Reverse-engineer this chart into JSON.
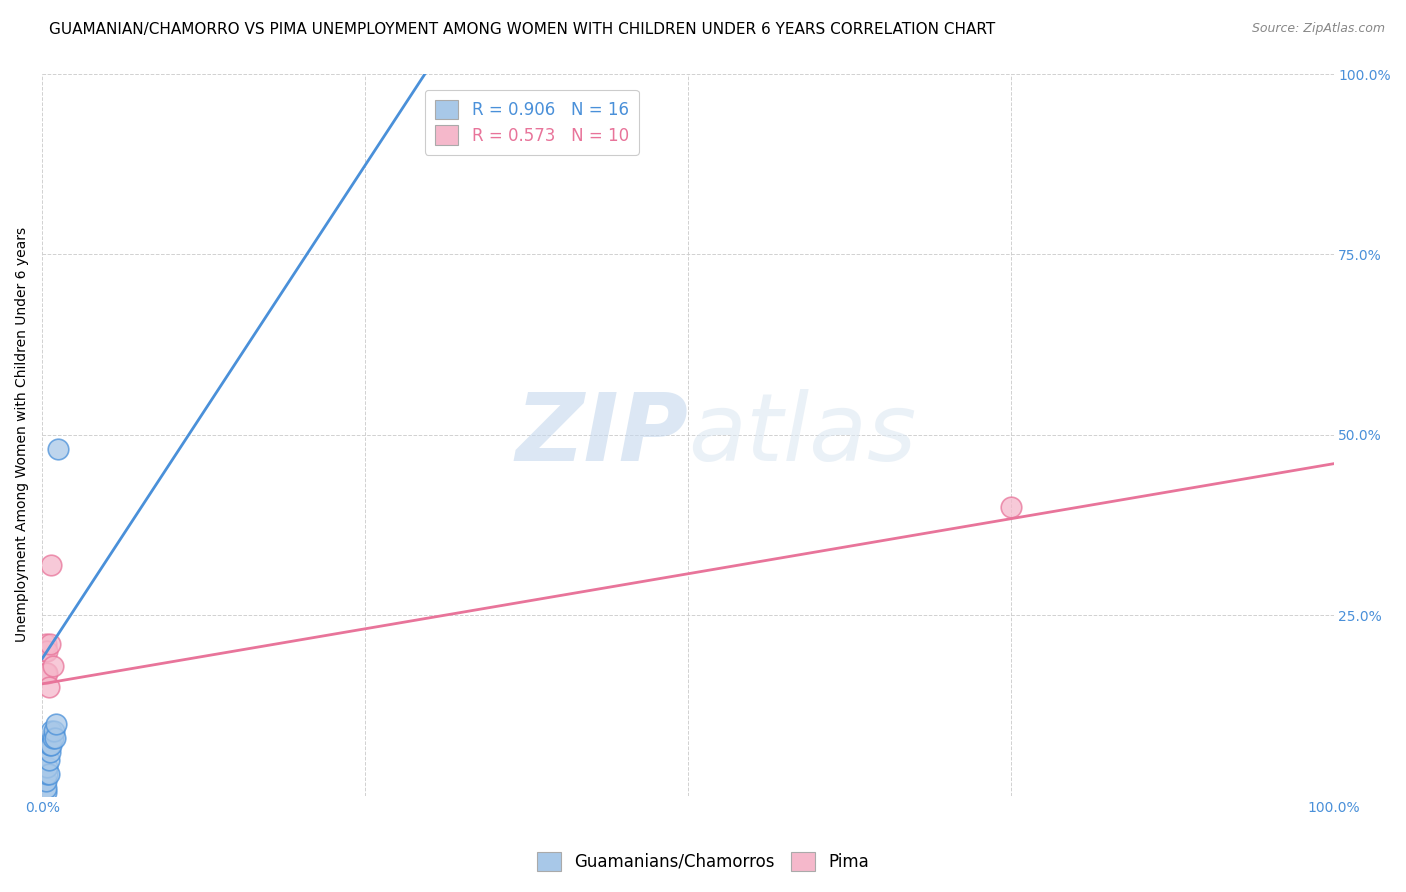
{
  "title": "GUAMANIAN/CHAMORRO VS PIMA UNEMPLOYMENT AMONG WOMEN WITH CHILDREN UNDER 6 YEARS CORRELATION CHART",
  "source": "Source: ZipAtlas.com",
  "ylabel": "Unemployment Among Women with Children Under 6 years",
  "xlim": [
    0,
    1.0
  ],
  "ylim": [
    0,
    1.0
  ],
  "xticks": [
    0.0,
    0.25,
    0.5,
    0.75,
    1.0
  ],
  "yticks": [
    0.0,
    0.25,
    0.5,
    0.75,
    1.0
  ],
  "xticklabels": [
    "0.0%",
    "",
    "",
    "",
    "100.0%"
  ],
  "right_yticklabels": [
    "",
    "25.0%",
    "50.0%",
    "75.0%",
    "100.0%"
  ],
  "background_color": "#ffffff",
  "blue_scatter_x": [
    0.003,
    0.003,
    0.003,
    0.004,
    0.004,
    0.005,
    0.005,
    0.006,
    0.006,
    0.007,
    0.007,
    0.008,
    0.009,
    0.01,
    0.011,
    0.012
  ],
  "blue_scatter_y": [
    0.005,
    0.01,
    0.02,
    0.03,
    0.04,
    0.03,
    0.05,
    0.06,
    0.07,
    0.07,
    0.09,
    0.08,
    0.09,
    0.08,
    0.1,
    0.48
  ],
  "pink_scatter_x": [
    0.002,
    0.003,
    0.003,
    0.004,
    0.004,
    0.005,
    0.006,
    0.007,
    0.008,
    0.75
  ],
  "pink_scatter_y": [
    0.2,
    0.17,
    0.21,
    0.17,
    0.2,
    0.15,
    0.21,
    0.32,
    0.18,
    0.4
  ],
  "blue_line_x": [
    0.0,
    0.3
  ],
  "blue_line_y": [
    0.19,
    1.01
  ],
  "pink_line_x": [
    0.0,
    1.0
  ],
  "pink_line_y": [
    0.155,
    0.46
  ],
  "blue_color": "#4a90d9",
  "pink_color": "#e8749a",
  "blue_scatter_color": "#a8c8e8",
  "pink_scatter_color": "#f5b8cb",
  "legend_entries": [
    {
      "label": "R = 0.906   N = 16"
    },
    {
      "label": "R = 0.573   N = 10"
    }
  ],
  "title_fontsize": 11,
  "source_fontsize": 9,
  "axis_label_fontsize": 10,
  "tick_fontsize": 10,
  "legend_fontsize": 12
}
